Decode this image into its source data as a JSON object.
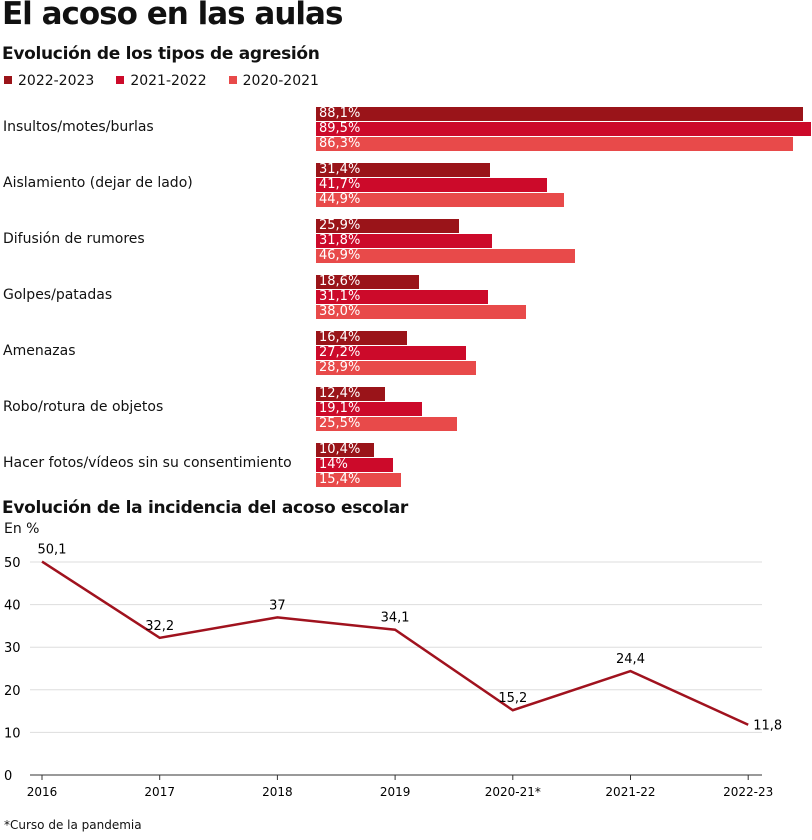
{
  "title": "El acoso en las aulas",
  "chart_data": [
    {
      "type": "bar",
      "orientation": "horizontal",
      "title": "Evolución de los tipos de agresión",
      "categories": [
        "Insultos/motes/burlas",
        "Aislamiento (dejar de lado)",
        "Difusión de rumores",
        "Golpes/patadas",
        "Amenazas",
        "Robo/rotura de objetos",
        "Hacer fotos/vídeos sin su consentimiento"
      ],
      "series": [
        {
          "name": "2022-2023",
          "color": "#9a1419",
          "values": [
            88.1,
            31.4,
            25.9,
            18.6,
            16.4,
            12.4,
            10.4
          ],
          "labels": [
            "88,1%",
            "31,4%",
            "25,9%",
            "18,6%",
            "16,4%",
            "12,4%",
            "10,4%"
          ]
        },
        {
          "name": "2021-2022",
          "color": "#cc0a2a",
          "values": [
            89.5,
            41.7,
            31.8,
            31.1,
            27.2,
            19.1,
            14
          ],
          "labels": [
            "89,5%",
            "41,7%",
            "31,8%",
            "31,1%",
            "27,2%",
            "19,1%",
            "14%"
          ]
        },
        {
          "name": "2020-2021",
          "color": "#e84a4a",
          "values": [
            86.3,
            44.9,
            46.9,
            38.0,
            28.9,
            25.5,
            15.4
          ],
          "labels": [
            "86,3%",
            "44,9%",
            "46,9%",
            "38,0%",
            "28,9%",
            "25,5%",
            "15,4%"
          ]
        }
      ],
      "legend": "top-left"
    },
    {
      "type": "line",
      "title": "Evolución de la incidencia del acoso escolar",
      "ylabel": "En %",
      "categories": [
        "2016",
        "2017",
        "2018",
        "2019",
        "2020-21*",
        "2021-22",
        "2022-23"
      ],
      "values": [
        50.1,
        32.2,
        37,
        34.1,
        15.2,
        24.4,
        11.8
      ],
      "labels": [
        "50,1",
        "32,2",
        "37",
        "34,1",
        "15,2",
        "24,4",
        "11,8"
      ],
      "yticks": [
        0,
        10,
        20,
        30,
        40,
        50
      ],
      "ylim": [
        0,
        50
      ],
      "grid": true,
      "color": "#a0121e",
      "note": "*Curso de la pandemia"
    }
  ]
}
